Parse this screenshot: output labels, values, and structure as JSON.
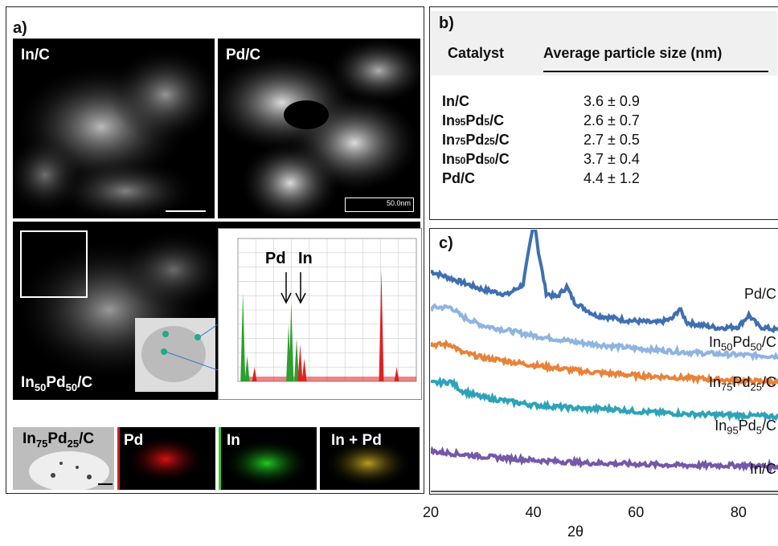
{
  "panel_a": {
    "label": "a)",
    "images": {
      "in_c": "In/C",
      "pd_c": "Pd/C",
      "pd_c_scale": "50.0nm",
      "in50pd50_c": [
        "In",
        "50",
        "Pd",
        "50",
        "/C"
      ],
      "in75pd25_c": [
        "In",
        "75",
        "Pd",
        "25",
        "/C"
      ],
      "map_pd": "Pd",
      "map_in": "In",
      "map_in_pd": "In + Pd"
    },
    "eds_annotations": {
      "pd": "Pd",
      "in": "In"
    }
  },
  "panel_b": {
    "label": "b)",
    "header": {
      "catalyst": "Catalyst",
      "size": "Average particle size (nm)"
    },
    "rows": [
      {
        "name": [
          "In/C"
        ],
        "value": "3.6 ± 0.9"
      },
      {
        "name": [
          "In",
          "95",
          "Pd",
          "5",
          "/C"
        ],
        "value": "2.6 ± 0.7"
      },
      {
        "name": [
          "In",
          "75",
          "Pd",
          "25",
          "/C"
        ],
        "value": "2.7 ± 0.5"
      },
      {
        "name": [
          "In",
          "50",
          "Pd",
          "50",
          "/C"
        ],
        "value": "3.7 ± 0.4"
      },
      {
        "name": [
          "Pd/C"
        ],
        "value": "4.4 ± 1.2"
      }
    ]
  },
  "panel_c": {
    "label": "c)",
    "xlabel": "2θ",
    "series_labels": [
      [
        "Pd/C"
      ],
      [
        "In",
        "50",
        "Pd",
        "50",
        "/C"
      ],
      [
        "In",
        "75",
        "Pd",
        "25",
        "/C"
      ],
      [
        "In",
        "95",
        "Pd",
        "5",
        "/C"
      ],
      [
        "In/C"
      ]
    ]
  },
  "chart_data": {
    "type": "line",
    "xlabel": "2θ",
    "ylabel": "",
    "xlim": [
      20,
      88
    ],
    "x_ticks": [
      20,
      40,
      60,
      80
    ],
    "grid": false,
    "series": [
      {
        "name": "Pd/C",
        "color": "#3f6fb0",
        "points": [
          [
            20,
            1.0
          ],
          [
            25,
            0.93
          ],
          [
            30,
            0.86
          ],
          [
            35,
            0.82
          ],
          [
            38,
            0.9
          ],
          [
            39.5,
            1.25
          ],
          [
            40.2,
            1.4
          ],
          [
            41,
            1.15
          ],
          [
            42.5,
            0.83
          ],
          [
            44.5,
            0.8
          ],
          [
            46.5,
            0.88
          ],
          [
            48,
            0.76
          ],
          [
            52,
            0.66
          ],
          [
            58,
            0.62
          ],
          [
            64,
            0.6
          ],
          [
            67,
            0.63
          ],
          [
            68.5,
            0.71
          ],
          [
            70,
            0.6
          ],
          [
            76,
            0.56
          ],
          [
            80,
            0.57
          ],
          [
            82,
            0.66
          ],
          [
            84,
            0.57
          ],
          [
            88,
            0.54
          ]
        ]
      },
      {
        "name": "In50Pd50/C",
        "color": "#8fb4e0",
        "points": [
          [
            20,
            0.72
          ],
          [
            24,
            0.72
          ],
          [
            26,
            0.65
          ],
          [
            30,
            0.58
          ],
          [
            40,
            0.5
          ],
          [
            50,
            0.44
          ],
          [
            60,
            0.4
          ],
          [
            70,
            0.37
          ],
          [
            80,
            0.35
          ],
          [
            88,
            0.34
          ]
        ]
      },
      {
        "name": "In75Pd25/C",
        "color": "#e8823a",
        "points": [
          [
            20,
            0.43
          ],
          [
            24,
            0.43
          ],
          [
            26,
            0.37
          ],
          [
            30,
            0.33
          ],
          [
            40,
            0.27
          ],
          [
            50,
            0.22
          ],
          [
            60,
            0.19
          ],
          [
            70,
            0.17
          ],
          [
            80,
            0.15
          ],
          [
            88,
            0.14
          ]
        ]
      },
      {
        "name": "In95Pd5/C",
        "color": "#2ea3b8",
        "points": [
          [
            20,
            0.13
          ],
          [
            24,
            0.14
          ],
          [
            26,
            0.07
          ],
          [
            30,
            0.02
          ],
          [
            40,
            -0.04
          ],
          [
            50,
            -0.07
          ],
          [
            55,
            -0.07
          ],
          [
            60,
            -0.09
          ],
          [
            70,
            -0.11
          ],
          [
            80,
            -0.12
          ],
          [
            88,
            -0.13
          ]
        ]
      },
      {
        "name": "In/C",
        "color": "#7558a8",
        "points": [
          [
            20,
            -0.4
          ],
          [
            30,
            -0.44
          ],
          [
            40,
            -0.47
          ],
          [
            50,
            -0.49
          ],
          [
            60,
            -0.5
          ],
          [
            70,
            -0.51
          ],
          [
            80,
            -0.51
          ],
          [
            88,
            -0.52
          ]
        ]
      }
    ]
  },
  "eds_chart": {
    "type": "bar",
    "xlim": [
      0,
      10
    ],
    "peaks": [
      {
        "x": 0.28,
        "h": 0.62,
        "color": "#2e9e2e"
      },
      {
        "x": 0.52,
        "h": 0.18,
        "color": "#2e9e2e"
      },
      {
        "x": 0.93,
        "h": 0.1,
        "color": "#d22"
      },
      {
        "x": 2.84,
        "h": 0.4,
        "color": "#2e9e2e"
      },
      {
        "x": 2.99,
        "h": 0.55,
        "color": "#2e9e2e"
      },
      {
        "x": 3.29,
        "h": 0.3,
        "color": "#2e9e2e"
      },
      {
        "x": 3.49,
        "h": 0.26,
        "color": "#d22"
      },
      {
        "x": 3.72,
        "h": 0.16,
        "color": "#d22"
      },
      {
        "x": 8.04,
        "h": 0.78,
        "color": "#d22"
      },
      {
        "x": 8.9,
        "h": 0.1,
        "color": "#d22"
      }
    ]
  }
}
